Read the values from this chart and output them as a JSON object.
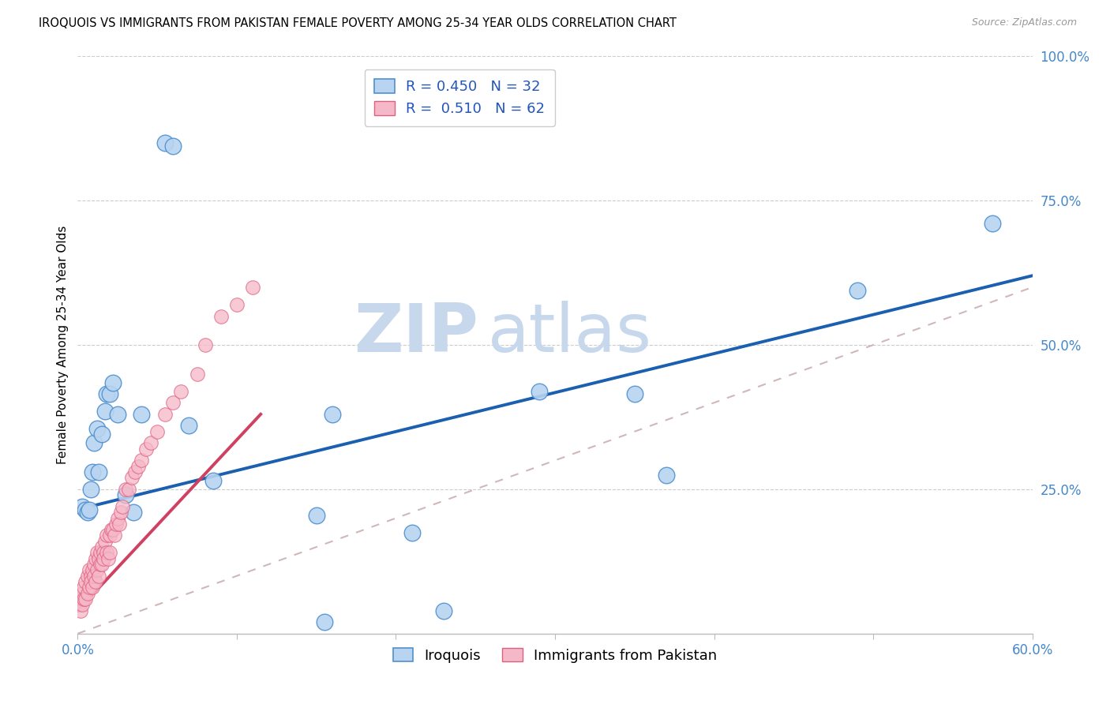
{
  "title": "IROQUOIS VS IMMIGRANTS FROM PAKISTAN FEMALE POVERTY AMONG 25-34 YEAR OLDS CORRELATION CHART",
  "source": "Source: ZipAtlas.com",
  "ylabel": "Female Poverty Among 25-34 Year Olds",
  "xmin": 0.0,
  "xmax": 0.6,
  "ymin": 0.0,
  "ymax": 1.0,
  "xticks": [
    0.0,
    0.1,
    0.2,
    0.3,
    0.4,
    0.5,
    0.6
  ],
  "xtick_labels": [
    "0.0%",
    "",
    "",
    "",
    "",
    "",
    "60.0%"
  ],
  "ytick_labels": [
    "",
    "25.0%",
    "50.0%",
    "75.0%",
    "100.0%"
  ],
  "yticks": [
    0.0,
    0.25,
    0.5,
    0.75,
    1.0
  ],
  "legend_r_blue": "0.450",
  "legend_n_blue": "32",
  "legend_r_pink": "0.510",
  "legend_n_pink": "62",
  "legend_label_blue": "Iroquois",
  "legend_label_pink": "Immigrants from Pakistan",
  "blue_fill": "#b8d4f0",
  "pink_fill": "#f5b8c8",
  "blue_edge": "#5090d0",
  "pink_edge": "#e06080",
  "blue_line_color": "#1a5fb0",
  "pink_line_color": "#d04060",
  "ref_line_color": "#d0b8b8",
  "watermark_zip": "ZIP",
  "watermark_atlas": "atlas",
  "watermark_color": "#c8d8ec",
  "iroquois_x": [
    0.003,
    0.005,
    0.006,
    0.007,
    0.008,
    0.009,
    0.01,
    0.012,
    0.013,
    0.015,
    0.017,
    0.018,
    0.02,
    0.022,
    0.025,
    0.03,
    0.035,
    0.04,
    0.055,
    0.06,
    0.07,
    0.085,
    0.15,
    0.155,
    0.16,
    0.21,
    0.23,
    0.29,
    0.35,
    0.37,
    0.49,
    0.575
  ],
  "iroquois_y": [
    0.22,
    0.215,
    0.21,
    0.215,
    0.25,
    0.28,
    0.33,
    0.355,
    0.28,
    0.345,
    0.385,
    0.415,
    0.415,
    0.435,
    0.38,
    0.24,
    0.21,
    0.38,
    0.85,
    0.845,
    0.36,
    0.265,
    0.205,
    0.02,
    0.38,
    0.175,
    0.04,
    0.42,
    0.415,
    0.275,
    0.595,
    0.71
  ],
  "pakistan_x": [
    0.001,
    0.002,
    0.002,
    0.003,
    0.003,
    0.004,
    0.004,
    0.005,
    0.005,
    0.006,
    0.006,
    0.007,
    0.007,
    0.008,
    0.008,
    0.009,
    0.009,
    0.01,
    0.01,
    0.011,
    0.011,
    0.012,
    0.012,
    0.013,
    0.013,
    0.014,
    0.014,
    0.015,
    0.015,
    0.016,
    0.016,
    0.017,
    0.018,
    0.018,
    0.019,
    0.02,
    0.02,
    0.021,
    0.022,
    0.023,
    0.024,
    0.025,
    0.026,
    0.027,
    0.028,
    0.03,
    0.032,
    0.034,
    0.036,
    0.038,
    0.04,
    0.043,
    0.046,
    0.05,
    0.055,
    0.06,
    0.065,
    0.075,
    0.08,
    0.09,
    0.1,
    0.11
  ],
  "pakistan_y": [
    0.05,
    0.06,
    0.04,
    0.07,
    0.05,
    0.08,
    0.06,
    0.09,
    0.06,
    0.1,
    0.07,
    0.11,
    0.08,
    0.1,
    0.09,
    0.11,
    0.08,
    0.12,
    0.1,
    0.13,
    0.09,
    0.14,
    0.11,
    0.13,
    0.1,
    0.14,
    0.12,
    0.15,
    0.12,
    0.14,
    0.13,
    0.16,
    0.17,
    0.14,
    0.13,
    0.17,
    0.14,
    0.18,
    0.18,
    0.17,
    0.19,
    0.2,
    0.19,
    0.21,
    0.22,
    0.25,
    0.25,
    0.27,
    0.28,
    0.29,
    0.3,
    0.32,
    0.33,
    0.35,
    0.38,
    0.4,
    0.42,
    0.45,
    0.5,
    0.55,
    0.57,
    0.6
  ],
  "blue_line_x0": 0.0,
  "blue_line_y0": 0.215,
  "blue_line_x1": 0.6,
  "blue_line_y1": 0.62,
  "pink_line_x0": 0.0,
  "pink_line_y0": 0.04,
  "pink_line_x1": 0.115,
  "pink_line_y1": 0.38
}
